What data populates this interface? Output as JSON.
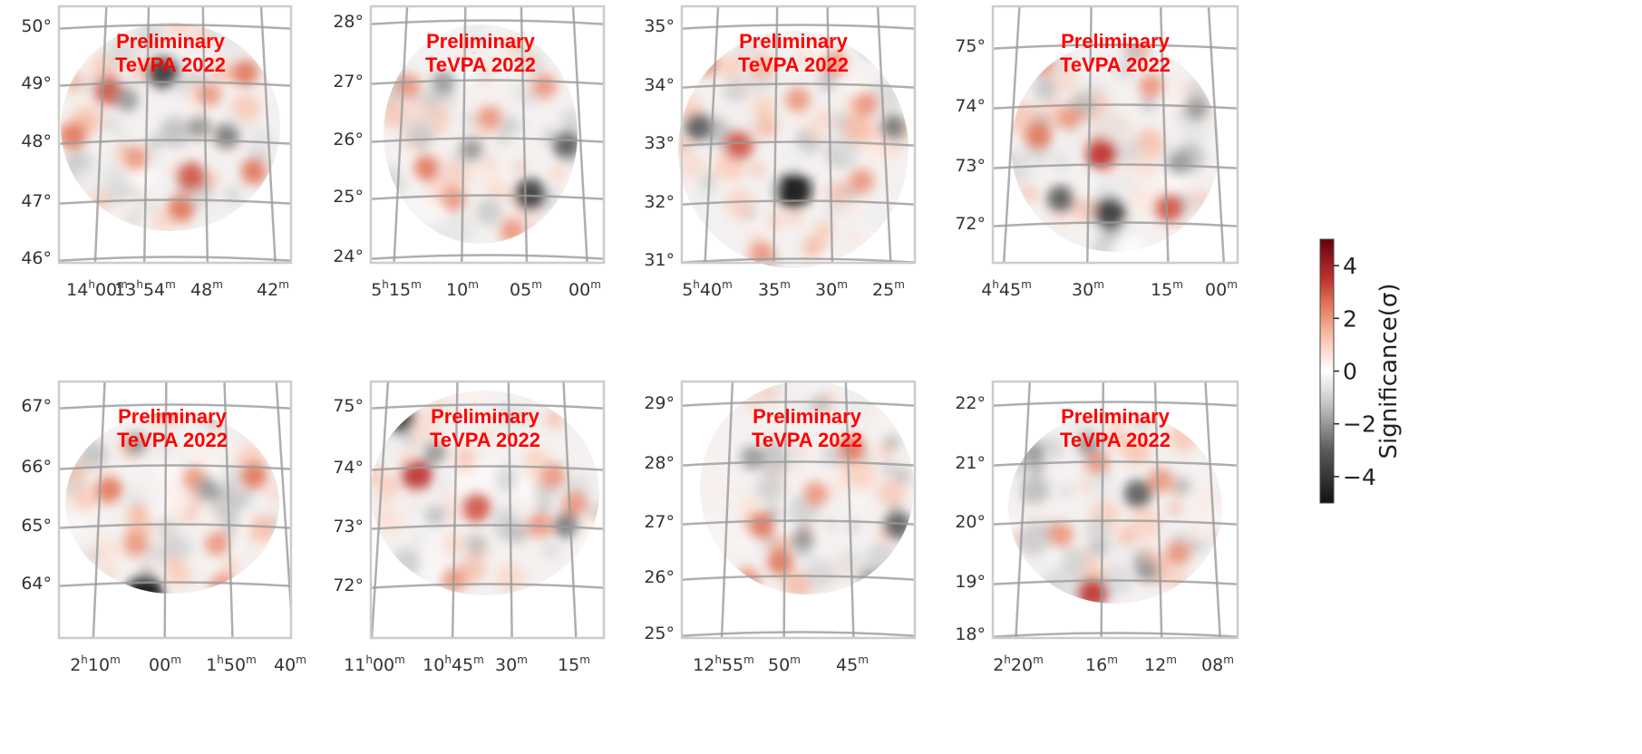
{
  "colors": {
    "positive": "#a50f15",
    "negative": "#111111",
    "zero": "#ffffff",
    "frame": "#cccccc",
    "grid": "#9a9a9a",
    "watermark": "#ff0000"
  },
  "chart_data": {
    "type": "heatmap",
    "layout": "grid 2 rows x 4 columns of sky significance maps",
    "panels": [
      {
        "watermark": [
          "Preliminary",
          "TeVPA 2022"
        ],
        "dec_ticks": [
          "50°",
          "49°",
          "48°",
          "47°",
          "46°"
        ],
        "ra_ticks": [
          [
            "14",
            "h",
            "00",
            "m"
          ],
          [
            "13",
            "h",
            "54",
            "m"
          ],
          [
            "48",
            "m"
          ],
          [
            "42",
            "m"
          ]
        ]
      },
      {
        "watermark": [
          "Preliminary",
          "TeVPA 2022"
        ],
        "dec_ticks": [
          "28°",
          "27°",
          "26°",
          "25°",
          "24°"
        ],
        "ra_ticks": [
          [
            "5",
            "h",
            "15",
            "m"
          ],
          [
            "10",
            "m"
          ],
          [
            "05",
            "m"
          ],
          [
            "00",
            "m"
          ]
        ]
      },
      {
        "watermark": [
          "Preliminary",
          "TeVPA 2022"
        ],
        "dec_ticks": [
          "35°",
          "34°",
          "33°",
          "32°",
          "31°"
        ],
        "ra_ticks": [
          [
            "5",
            "h",
            "40",
            "m"
          ],
          [
            "35",
            "m"
          ],
          [
            "30",
            "m"
          ],
          [
            "25",
            "m"
          ]
        ]
      },
      {
        "watermark": [
          "Preliminary",
          "TeVPA 2022"
        ],
        "dec_ticks": [
          "75°",
          "74°",
          "73°",
          "72°"
        ],
        "ra_ticks": [
          [
            "4",
            "h",
            "45",
            "m"
          ],
          [
            "30",
            "m"
          ],
          [
            "15",
            "m"
          ],
          [
            "00",
            "m"
          ]
        ]
      },
      {
        "watermark": [
          "Preliminary",
          "TeVPA 2022"
        ],
        "dec_ticks": [
          "67°",
          "66°",
          "65°",
          "64°"
        ],
        "ra_ticks": [
          [
            "2",
            "h",
            "10",
            "m"
          ],
          [
            "00",
            "m"
          ],
          [
            "1",
            "h",
            "50",
            "m"
          ],
          [
            "40",
            "m"
          ]
        ]
      },
      {
        "watermark": [
          "Preliminary",
          "TeVPA 2022"
        ],
        "dec_ticks": [
          "75°",
          "74°",
          "73°",
          "72°"
        ],
        "ra_ticks": [
          [
            "11",
            "h",
            "00",
            "m"
          ],
          [
            "10",
            "h",
            "45",
            "m"
          ],
          [
            "30",
            "m"
          ],
          [
            "15",
            "m"
          ]
        ]
      },
      {
        "watermark": [
          "Preliminary",
          "TeVPA 2022"
        ],
        "dec_ticks": [
          "29°",
          "28°",
          "27°",
          "26°",
          "25°"
        ],
        "ra_ticks": [
          [
            "12",
            "h",
            "55",
            "m"
          ],
          [
            "50",
            "m"
          ],
          [
            "45",
            "m"
          ]
        ]
      },
      {
        "watermark": [
          "Preliminary",
          "TeVPA 2022"
        ],
        "dec_ticks": [
          "22°",
          "21°",
          "20°",
          "19°",
          "18°"
        ],
        "ra_ticks": [
          [
            "2",
            "h",
            "20",
            "m"
          ],
          [
            "16",
            "m"
          ],
          [
            "12",
            "m"
          ],
          [
            "08",
            "m"
          ]
        ]
      }
    ],
    "colorbar": {
      "label": "Significance(σ)",
      "range": [
        -5,
        5
      ],
      "ticks": [
        "4",
        "2",
        "0",
        "−2",
        "−4"
      ],
      "tick_values": [
        4,
        2,
        0,
        -2,
        -4
      ],
      "colormap": "RdGy_r (black → white → dark red)"
    }
  }
}
